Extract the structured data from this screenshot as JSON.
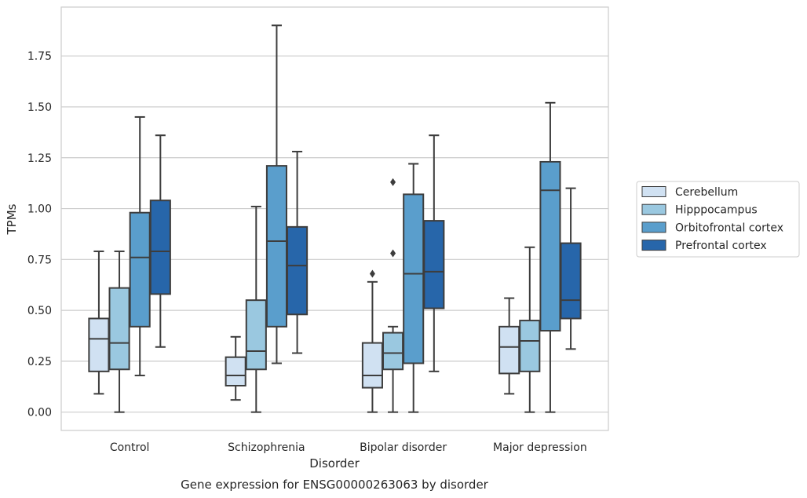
{
  "chart_data": {
    "type": "boxplot",
    "title": "Gene expression for ENSG00000263063 by disorder",
    "xlabel": "Disorder",
    "ylabel": "TPMs",
    "ylim": [
      -0.09,
      1.99
    ],
    "yticks": [
      "0.00",
      "0.25",
      "0.50",
      "0.75",
      "1.00",
      "1.25",
      "1.50",
      "1.75"
    ],
    "grid": "horizontal",
    "legend_position": "center-right",
    "categories": [
      "Control",
      "Schizophrenia",
      "Bipolar disorder",
      "Major depression"
    ],
    "series": [
      {
        "name": "Cerebellum",
        "color": "#d0e1f2",
        "boxes": [
          {
            "whisker_low": 0.09,
            "q1": 0.2,
            "median": 0.36,
            "q3": 0.46,
            "whisker_high": 0.79,
            "outliers": []
          },
          {
            "whisker_low": 0.06,
            "q1": 0.13,
            "median": 0.18,
            "q3": 0.27,
            "whisker_high": 0.37,
            "outliers": []
          },
          {
            "whisker_low": 0.0,
            "q1": 0.12,
            "median": 0.18,
            "q3": 0.34,
            "whisker_high": 0.64,
            "outliers": [
              0.68
            ]
          },
          {
            "whisker_low": 0.09,
            "q1": 0.19,
            "median": 0.32,
            "q3": 0.42,
            "whisker_high": 0.56,
            "outliers": []
          }
        ]
      },
      {
        "name": "Hipppocampus",
        "color": "#9ac8e0",
        "boxes": [
          {
            "whisker_low": 0.0,
            "q1": 0.21,
            "median": 0.34,
            "q3": 0.61,
            "whisker_high": 0.79,
            "outliers": []
          },
          {
            "whisker_low": 0.0,
            "q1": 0.21,
            "median": 0.3,
            "q3": 0.55,
            "whisker_high": 1.01,
            "outliers": []
          },
          {
            "whisker_low": 0.0,
            "q1": 0.21,
            "median": 0.29,
            "q3": 0.39,
            "whisker_high": 0.42,
            "outliers": [
              0.78,
              1.13
            ]
          },
          {
            "whisker_low": 0.0,
            "q1": 0.2,
            "median": 0.35,
            "q3": 0.45,
            "whisker_high": 0.81,
            "outliers": []
          }
        ]
      },
      {
        "name": "Orbitofrontal cortex",
        "color": "#5a9ecc",
        "boxes": [
          {
            "whisker_low": 0.18,
            "q1": 0.42,
            "median": 0.76,
            "q3": 0.98,
            "whisker_high": 1.45,
            "outliers": []
          },
          {
            "whisker_low": 0.24,
            "q1": 0.42,
            "median": 0.84,
            "q3": 1.21,
            "whisker_high": 1.9,
            "outliers": []
          },
          {
            "whisker_low": 0.0,
            "q1": 0.24,
            "median": 0.68,
            "q3": 1.07,
            "whisker_high": 1.22,
            "outliers": []
          },
          {
            "whisker_low": 0.0,
            "q1": 0.4,
            "median": 1.09,
            "q3": 1.23,
            "whisker_high": 1.52,
            "outliers": []
          }
        ]
      },
      {
        "name": "Prefrontal cortex",
        "color": "#2766aa",
        "boxes": [
          {
            "whisker_low": 0.32,
            "q1": 0.58,
            "median": 0.79,
            "q3": 1.04,
            "whisker_high": 1.36,
            "outliers": []
          },
          {
            "whisker_low": 0.29,
            "q1": 0.48,
            "median": 0.72,
            "q3": 0.91,
            "whisker_high": 1.28,
            "outliers": []
          },
          {
            "whisker_low": 0.2,
            "q1": 0.51,
            "median": 0.69,
            "q3": 0.94,
            "whisker_high": 1.36,
            "outliers": []
          },
          {
            "whisker_low": 0.31,
            "q1": 0.46,
            "median": 0.55,
            "q3": 0.83,
            "whisker_high": 1.1,
            "outliers": []
          }
        ]
      }
    ]
  }
}
